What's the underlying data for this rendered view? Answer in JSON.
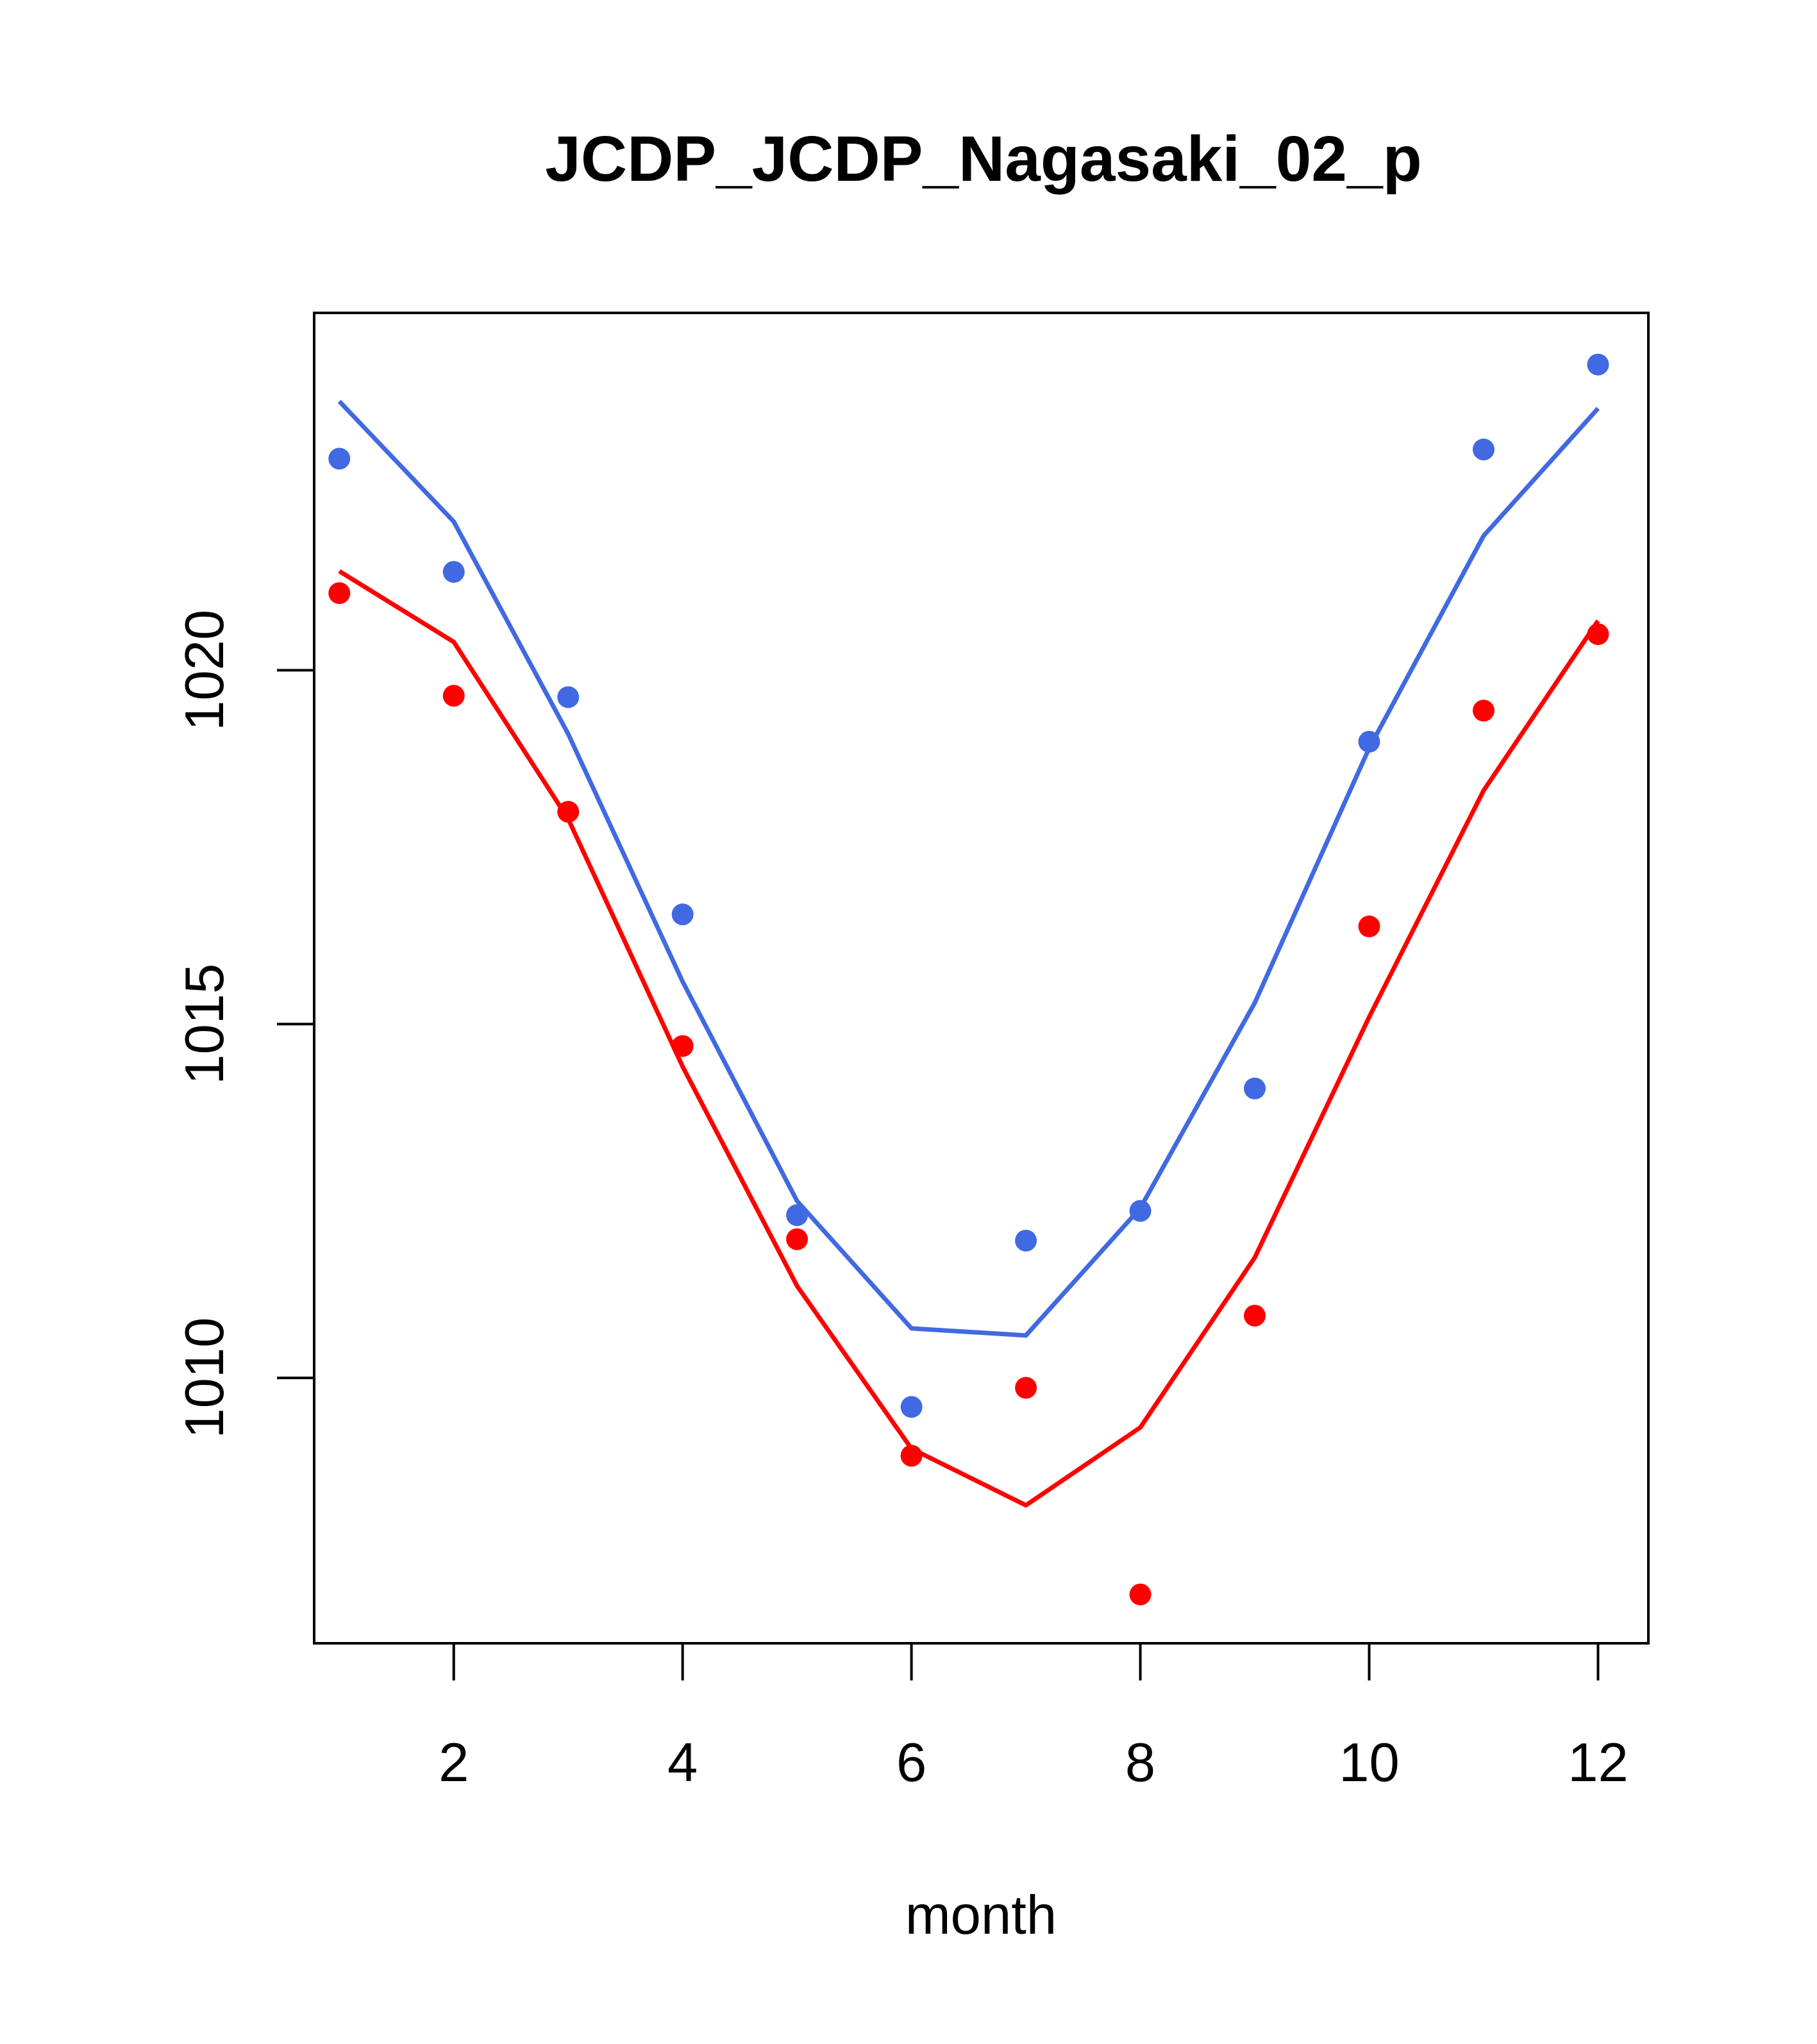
{
  "chart_data": {
    "type": "line",
    "title": "JCDP_JCDP_Nagasaki_02_p",
    "xlabel": "month",
    "ylabel": "",
    "xlim": [
      0.78,
      12.44
    ],
    "ylim": [
      1006.25,
      1025.05
    ],
    "xticks": [
      2,
      4,
      6,
      8,
      10,
      12
    ],
    "yticks": [
      1010,
      1015,
      1020
    ],
    "grid": false,
    "legend": "none",
    "series": [
      {
        "color": "#4169E1",
        "points_x": [
          1,
          2,
          3,
          4,
          5,
          6,
          7,
          8,
          9,
          10,
          11,
          12
        ],
        "points_y": [
          1022.99,
          1021.39,
          1019.62,
          1016.55,
          1012.3,
          1009.59,
          1011.94,
          1012.36,
          1014.09,
          1018.99,
          1023.12,
          1024.32
        ],
        "line_x": [
          1,
          2,
          3,
          4,
          5,
          6,
          7,
          8,
          9,
          10,
          11,
          12
        ],
        "line_y": [
          1023.8,
          1022.1,
          1019.1,
          1015.6,
          1012.5,
          1010.7,
          1010.6,
          1012.4,
          1015.3,
          1018.9,
          1021.9,
          1023.7
        ]
      },
      {
        "color": "#FF0000",
        "points_x": [
          1,
          2,
          3,
          4,
          5,
          6,
          7,
          8,
          9,
          10,
          11,
          12
        ],
        "points_y": [
          1021.09,
          1019.64,
          1018.0,
          1014.69,
          1011.96,
          1008.9,
          1009.86,
          1006.94,
          1010.88,
          1016.38,
          1019.43,
          1020.51
        ],
        "line_x": [
          1,
          2,
          3,
          4,
          5,
          6,
          7,
          8,
          9,
          10,
          11,
          12
        ],
        "line_y": [
          1021.4,
          1020.4,
          1017.9,
          1014.4,
          1011.3,
          1009.0,
          1008.2,
          1009.3,
          1011.7,
          1015.1,
          1018.3,
          1020.7
        ]
      }
    ]
  }
}
